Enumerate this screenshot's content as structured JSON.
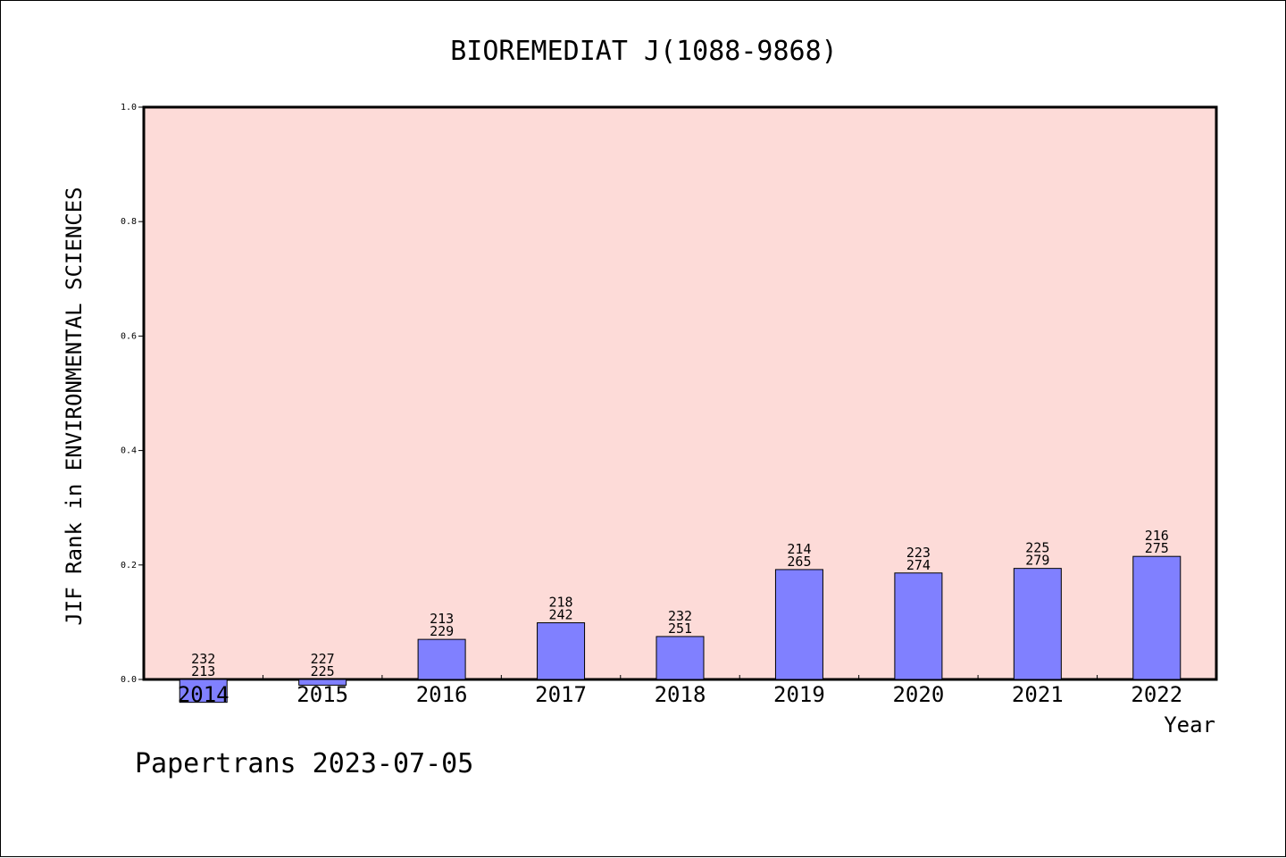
{
  "chart_data": {
    "type": "bar",
    "title": "BIOREMEDIAT J(1088-9868)",
    "xlabel": "Year",
    "ylabel": "JIF Rank in ENVIRONMENTAL SCIENCES",
    "ylim": [
      0,
      1.0
    ],
    "yticks": [
      "0.0",
      "0.2",
      "0.4",
      "0.6",
      "0.8",
      "1.0"
    ],
    "grid": false,
    "categories": [
      "2014",
      "2015",
      "2016",
      "2017",
      "2018",
      "2019",
      "2020",
      "2021",
      "2022"
    ],
    "values": [
      -0.04,
      -0.01,
      0.07,
      0.099,
      0.075,
      0.192,
      0.186,
      0.194,
      0.215
    ],
    "labels": [
      [
        "232",
        "213"
      ],
      [
        "227",
        "225"
      ],
      [
        "213",
        "229"
      ],
      [
        "218",
        "242"
      ],
      [
        "232",
        "251"
      ],
      [
        "214",
        "265"
      ],
      [
        "223",
        "274"
      ],
      [
        "225",
        "279"
      ],
      [
        "216",
        "275"
      ]
    ]
  },
  "footer": {
    "text": "Papertrans 2023-07-05"
  },
  "colors": {
    "plot_background": "#fddbd8",
    "bar_fill": "#8080ff",
    "bar_stroke": "#000000"
  }
}
